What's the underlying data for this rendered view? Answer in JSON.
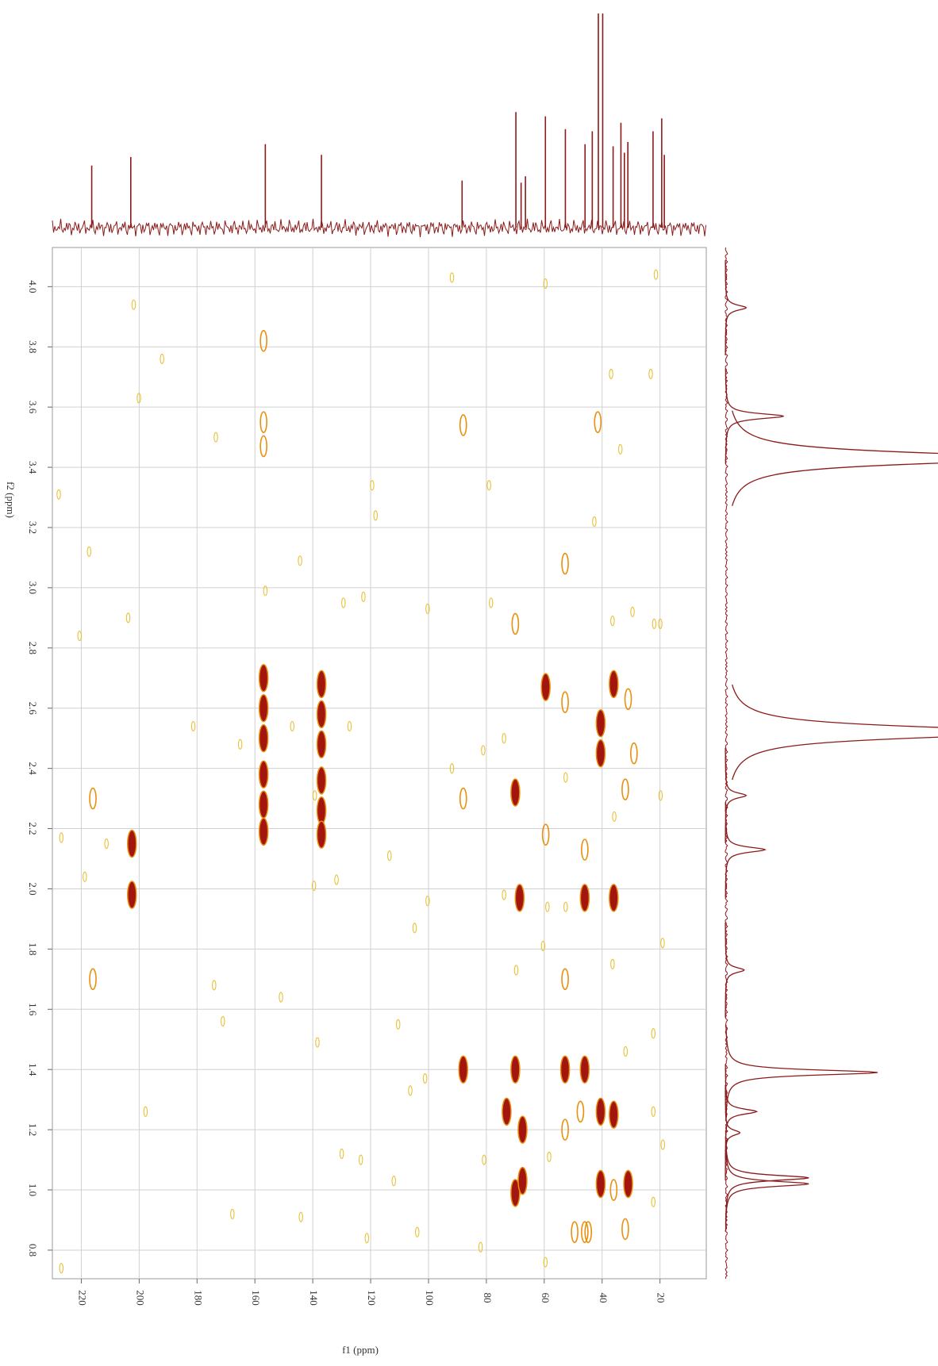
{
  "chart_data": {
    "type": "nmr-2d",
    "x_label": "f1 (ppm)",
    "y_label": "f2 (ppm)",
    "xlim": [
      230,
      4
    ],
    "ylim": [
      0.705,
      4.13
    ],
    "xticks": [
      220,
      200,
      180,
      160,
      140,
      120,
      100,
      80,
      60,
      40,
      20
    ],
    "yticks": [
      0.8,
      {
        "value": 1,
        "label": "1.0"
      },
      1.2,
      1.4,
      1.6,
      1.8,
      {
        "value": 2,
        "label": "2.0"
      },
      2.2,
      2.4,
      2.6,
      2.8,
      {
        "value": 3,
        "label": "3.0"
      },
      3.2,
      3.4,
      3.6,
      3.8,
      {
        "value": 4,
        "label": "4.0"
      }
    ],
    "grid": true,
    "level_colors": [
      "#e8c23a",
      "#e8900f",
      "#a3160f"
    ],
    "cross_peaks": {
      "f1": [
        157,
        157,
        157,
        157,
        157,
        157,
        137,
        137,
        137,
        137,
        137,
        137,
        202.5,
        202.5,
        216,
        216,
        88,
        70,
        70,
        73,
        70,
        70,
        67.5,
        67.5,
        68.5,
        59.5,
        59.5,
        52.8,
        52.8,
        52.8,
        52.8,
        52.8,
        46,
        46,
        46,
        47.5,
        46,
        40.5,
        40.5,
        40.5,
        40.5,
        41.5,
        36,
        36,
        36,
        36,
        31,
        31,
        29,
        32,
        32,
        49.5,
        44.8,
        157,
        157,
        157,
        88,
        88,
        227.8,
        217.3,
        192.1,
        200.1,
        201.9,
        173.5,
        144.4,
        156.4,
        129.4,
        122.5,
        100.3,
        91.9,
        78.4,
        59.6,
        36.9,
        23.2,
        21.4,
        33.7,
        42.7,
        79.1,
        119.5,
        118.3,
        22,
        29.5,
        36.4,
        19.9,
        203.8,
        220.6,
        181.3,
        165.1,
        147.1,
        127.3,
        81.1,
        91.9,
        73.9,
        139.3,
        52.6,
        35.8,
        19.8,
        218.8,
        226.9,
        211.3,
        113.5,
        131.8,
        139.6,
        73.9,
        58.9,
        52.6,
        100.3,
        104.8,
        19.1,
        60.4,
        36.4,
        69.7,
        151,
        174.1,
        171.1,
        110.5,
        22.3,
        31.9,
        138.4,
        106.3,
        101.2,
        197.8,
        22.3,
        19,
        80.8,
        58.3,
        130,
        123.4,
        112,
        167.8,
        22.3,
        144.1,
        103.9,
        121.3,
        82,
        226.9,
        59.6
      ],
      "f2": [
        2.7,
        2.6,
        2.5,
        2.38,
        2.28,
        2.19,
        2.68,
        2.58,
        2.48,
        2.36,
        2.26,
        2.18,
        2.15,
        1.98,
        2.3,
        1.7,
        1.4,
        1.4,
        2.32,
        1.26,
        0.99,
        2.88,
        1.2,
        1.03,
        1.97,
        2.67,
        2.18,
        1.4,
        2.62,
        1.7,
        3.08,
        1.2,
        1.4,
        2.13,
        1.97,
        1.26,
        0.86,
        2.55,
        2.45,
        1.26,
        1.02,
        3.55,
        2.68,
        1.97,
        1.25,
        1,
        1.02,
        2.63,
        2.45,
        2.33,
        0.87,
        0.86,
        0.86,
        3.82,
        3.55,
        3.47,
        2.3,
        3.54,
        3.31,
        3.12,
        3.76,
        3.63,
        3.94,
        3.5,
        3.09,
        2.99,
        2.95,
        2.97,
        2.93,
        4.03,
        2.95,
        4.01,
        3.71,
        3.71,
        4.04,
        3.46,
        3.22,
        3.34,
        3.34,
        3.24,
        2.88,
        2.92,
        2.89,
        2.88,
        2.9,
        2.84,
        2.54,
        2.48,
        2.54,
        2.54,
        2.46,
        2.4,
        2.5,
        2.31,
        2.37,
        2.24,
        2.31,
        2.04,
        2.17,
        2.15,
        2.11,
        2.03,
        2.01,
        1.98,
        1.94,
        1.94,
        1.96,
        1.87,
        1.82,
        1.81,
        1.75,
        1.73,
        1.64,
        1.68,
        1.56,
        1.55,
        1.52,
        1.46,
        1.49,
        1.33,
        1.37,
        1.26,
        1.26,
        1.15,
        1.1,
        1.11,
        1.12,
        1.1,
        1.03,
        0.92,
        0.96,
        0.91,
        0.86,
        0.84,
        0.81,
        0.74,
        0.76
      ],
      "level": [
        3,
        3,
        3,
        3,
        3,
        3,
        3,
        3,
        3,
        3,
        3,
        3,
        3,
        3,
        2,
        2,
        3,
        3,
        3,
        3,
        3,
        2,
        3,
        3,
        3,
        3,
        2,
        3,
        2,
        2,
        2,
        2,
        3,
        2,
        3,
        2,
        2,
        3,
        3,
        3,
        3,
        2,
        3,
        3,
        3,
        2,
        3,
        2,
        2,
        2,
        2,
        2,
        2,
        2,
        2,
        2,
        2,
        2,
        1,
        1,
        1,
        1,
        1,
        1,
        1,
        1,
        1,
        1,
        1,
        1,
        1,
        1,
        1,
        1,
        1,
        1,
        1,
        1,
        1,
        1,
        1,
        1,
        1,
        1,
        1,
        1,
        1,
        1,
        1,
        1,
        1,
        1,
        1,
        1,
        1,
        1,
        1,
        1,
        1,
        1,
        1,
        1,
        1,
        1,
        1,
        1,
        1,
        1,
        1,
        1,
        1,
        1,
        1,
        1,
        1,
        1,
        1,
        1,
        1,
        1,
        1,
        1,
        1,
        1,
        1,
        1,
        1,
        1,
        1,
        1,
        1,
        1,
        1,
        1,
        1,
        1,
        1
      ]
    },
    "f1_projection": {
      "color": "#8b1a1a",
      "ppm": [
        216.4,
        202.9,
        156.4,
        137,
        88.4,
        69.8,
        68,
        66.5,
        59.6,
        52.7,
        45.9,
        43.4,
        41.3,
        39.8,
        36.2,
        33.5,
        32.3,
        31.1,
        22.4,
        19.4,
        18.5
      ],
      "height": [
        0.29,
        0.33,
        0.39,
        0.34,
        0.22,
        0.54,
        0.21,
        0.24,
        0.52,
        0.46,
        0.39,
        0.45,
        1.0,
        1.0,
        0.38,
        0.49,
        0.35,
        0.4,
        0.45,
        0.51,
        0.34
      ]
    },
    "f2_projection": {
      "color": "#8b1a1a",
      "ppm": [
        3.93,
        3.57,
        3.43,
        2.52,
        2.31,
        2.13,
        1.73,
        1.39,
        1.26,
        1.19,
        1.04,
        1.02
      ],
      "height": [
        0.1,
        0.28,
        1.5,
        1.5,
        0.1,
        0.19,
        0.09,
        0.73,
        0.15,
        0.07,
        0.4,
        0.4
      ]
    }
  }
}
